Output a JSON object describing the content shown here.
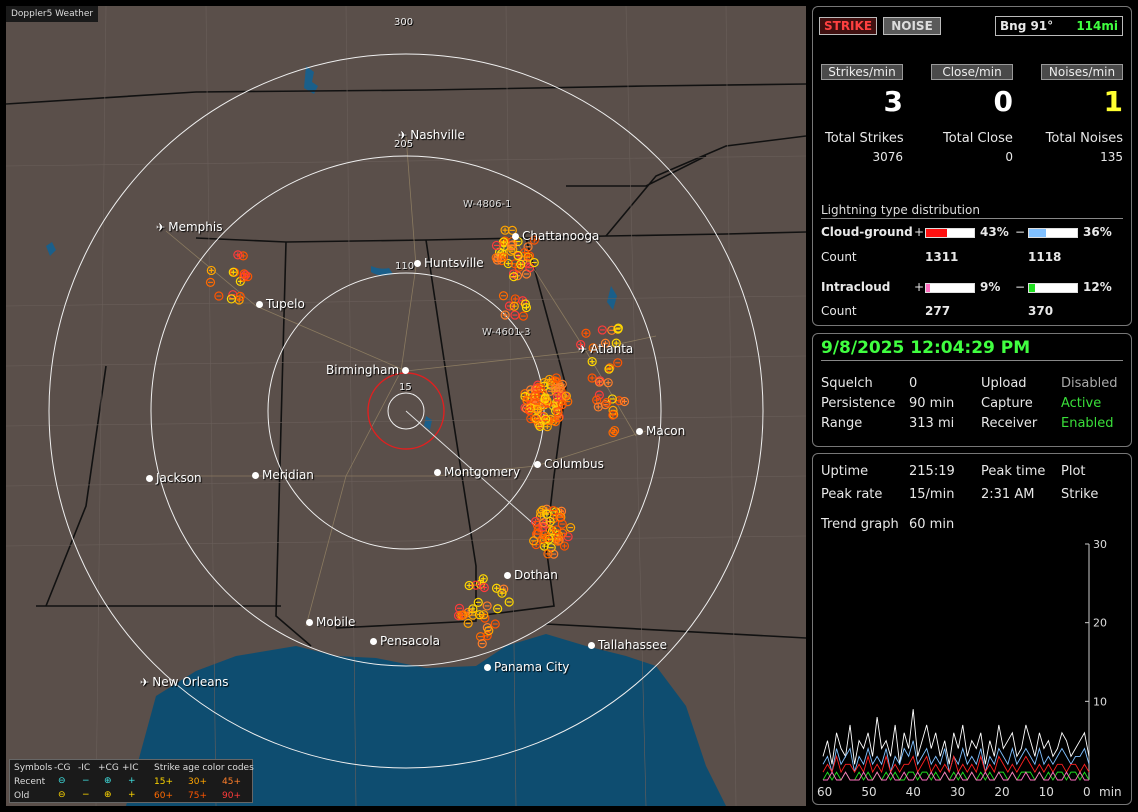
{
  "map": {
    "title": "Doppler5 Weather",
    "ring_labels": [
      "300",
      "205",
      "110",
      "15"
    ],
    "station_labels": [
      "W-4806-1",
      "W-4601-3"
    ],
    "cities": [
      {
        "name": "Nashville",
        "type": "airport"
      },
      {
        "name": "Memphis",
        "type": "airport"
      },
      {
        "name": "Chattanooga",
        "type": "city"
      },
      {
        "name": "Huntsville",
        "type": "city"
      },
      {
        "name": "Tupelo",
        "type": "city"
      },
      {
        "name": "Atlanta",
        "type": "airport"
      },
      {
        "name": "Birmingham",
        "type": "city"
      },
      {
        "name": "Macon",
        "type": "city"
      },
      {
        "name": "Jackson",
        "type": "city"
      },
      {
        "name": "Meridian",
        "type": "city"
      },
      {
        "name": "Montgomery",
        "type": "city"
      },
      {
        "name": "Columbus",
        "type": "city"
      },
      {
        "name": "Dothan",
        "type": "city"
      },
      {
        "name": "Mobile",
        "type": "city"
      },
      {
        "name": "Pensacola",
        "type": "city"
      },
      {
        "name": "Tallahassee",
        "type": "city"
      },
      {
        "name": "Panama City",
        "type": "city"
      },
      {
        "name": "New Orleans",
        "type": "airport"
      }
    ],
    "legend": {
      "symbols_label": "Symbols",
      "headers": [
        "-CG",
        "-IC",
        "+CG",
        "+IC"
      ],
      "age_label": "Strike age color codes",
      "recent_label": "Recent",
      "old_label": "Old",
      "recent_ages": [
        "15+",
        "30+",
        "45+"
      ],
      "old_ages": [
        "60+",
        "75+",
        "90+"
      ],
      "age_colors": [
        "#ffd700",
        "#ffa500",
        "#ff7f2a",
        "#ff6a00",
        "#ff5500",
        "#ff3b3b"
      ]
    }
  },
  "top": {
    "strike_button": "STRIKE",
    "noise_button": "NOISE",
    "bearing": "Bng 91°",
    "distance": "114mi",
    "strikes_min_label": "Strikes/min",
    "close_min_label": "Close/min",
    "noises_min_label": "Noises/min",
    "strikes_min": "3",
    "close_min": "0",
    "noises_min": "1",
    "total_strikes_label": "Total Strikes",
    "total_close_label": "Total Close",
    "total_noises_label": "Total Noises",
    "total_strikes": "3076",
    "total_close": "0",
    "total_noises": "135"
  },
  "distribution": {
    "title": "Lightning type distribution",
    "cg_label": "Cloud-ground",
    "ic_label": "Intracloud",
    "count_label": "Count",
    "plus": "+",
    "minus": "−",
    "cg_pos_pct": "43%",
    "cg_neg_pct": "36%",
    "cg_pos_count": "1311",
    "cg_neg_count": "1118",
    "ic_pos_pct": "9%",
    "ic_neg_pct": "12%",
    "ic_pos_count": "277",
    "ic_neg_count": "370",
    "fills": {
      "cg_pos": 0.43,
      "cg_neg": 0.36,
      "ic_pos": 0.09,
      "ic_neg": 0.12
    },
    "colors": {
      "cg_pos": "#ff1010",
      "cg_neg": "#80c0ff",
      "ic_pos": "#ff70c0",
      "ic_neg": "#20e020"
    }
  },
  "status": {
    "datetime": "9/8/2025 12:04:29 PM",
    "squelch_label": "Squelch",
    "squelch": "0",
    "persistence_label": "Persistence",
    "persistence": "90 min",
    "range_label": "Range",
    "range": "313 mi",
    "upload_label": "Upload",
    "upload": "Disabled",
    "capture_label": "Capture",
    "capture": "Active",
    "receiver_label": "Receiver",
    "receiver": "Enabled"
  },
  "stats": {
    "uptime_label": "Uptime",
    "uptime": "215:19",
    "peak_time_label": "Peak time",
    "peak_time": "2:31 AM",
    "plot_label": "Plot",
    "plot": "Strike",
    "peak_rate_label": "Peak rate",
    "peak_rate": "15/min",
    "trend_label": "Trend graph",
    "trend": "60 min"
  },
  "chart_data": {
    "type": "line",
    "x_ticks": [
      "60",
      "50",
      "40",
      "30",
      "20",
      "10",
      "0"
    ],
    "x_unit": "min",
    "y_ticks": [
      "30",
      "20",
      "10"
    ],
    "ylim": [
      0,
      30
    ],
    "xlim": [
      60,
      0
    ],
    "series": [
      {
        "color": "#ffffff",
        "values": [
          3,
          5,
          2,
          6,
          4,
          3,
          7,
          2,
          5,
          4,
          6,
          3,
          8,
          4,
          5,
          3,
          7,
          2,
          6,
          4,
          9,
          3,
          5,
          7,
          4,
          6,
          3,
          5,
          2,
          6,
          4,
          7,
          3,
          5,
          4,
          6,
          2,
          5,
          3,
          7,
          4,
          5,
          6,
          3,
          4,
          7,
          5,
          3,
          6,
          4,
          5,
          3,
          4,
          6,
          5,
          3,
          4,
          5,
          6,
          3
        ]
      },
      {
        "color": "#80c0ff",
        "values": [
          2,
          3,
          1,
          4,
          2,
          3,
          4,
          1,
          3,
          2,
          4,
          2,
          3,
          2,
          4,
          1,
          3,
          2,
          4,
          3,
          5,
          2,
          3,
          4,
          2,
          3,
          2,
          4,
          1,
          3,
          2,
          4,
          2,
          3,
          2,
          4,
          1,
          3,
          2,
          4,
          3,
          2,
          4,
          2,
          3,
          4,
          3,
          2,
          4,
          2,
          3,
          2,
          3,
          4,
          3,
          2,
          3,
          3,
          4,
          2
        ]
      },
      {
        "color": "#ff2020",
        "values": [
          1,
          2,
          1,
          3,
          1,
          2,
          2,
          1,
          2,
          1,
          3,
          1,
          2,
          1,
          3,
          1,
          2,
          1,
          2,
          2,
          3,
          1,
          2,
          3,
          1,
          2,
          1,
          2,
          1,
          3,
          1,
          2,
          1,
          2,
          1,
          3,
          1,
          2,
          1,
          3,
          2,
          1,
          2,
          1,
          2,
          3,
          2,
          1,
          2,
          1,
          2,
          1,
          2,
          2,
          1,
          2,
          2,
          1,
          2,
          1
        ]
      },
      {
        "color": "#20e020",
        "values": [
          0,
          1,
          0,
          1,
          0,
          1,
          0,
          0,
          1,
          0,
          1,
          0,
          1,
          0,
          1,
          0,
          1,
          0,
          0,
          1,
          1,
          0,
          1,
          1,
          0,
          1,
          0,
          1,
          0,
          1,
          0,
          1,
          0,
          1,
          0,
          1,
          0,
          1,
          0,
          1,
          1,
          0,
          1,
          0,
          1,
          1,
          1,
          0,
          1,
          0,
          1,
          0,
          1,
          1,
          0,
          1,
          1,
          0,
          1,
          0
        ]
      },
      {
        "color": "#ff70c0",
        "values": [
          0,
          0,
          1,
          0,
          0,
          1,
          0,
          0,
          0,
          1,
          0,
          0,
          1,
          0,
          0,
          1,
          0,
          0,
          1,
          0,
          0,
          1,
          0,
          0,
          1,
          0,
          0,
          1,
          0,
          0,
          1,
          0,
          0,
          1,
          0,
          0,
          1,
          0,
          0,
          1,
          0,
          0,
          1,
          0,
          0,
          1,
          0,
          0,
          1,
          0,
          0,
          1,
          0,
          0,
          1,
          0,
          0,
          1,
          0,
          0
        ]
      }
    ]
  }
}
